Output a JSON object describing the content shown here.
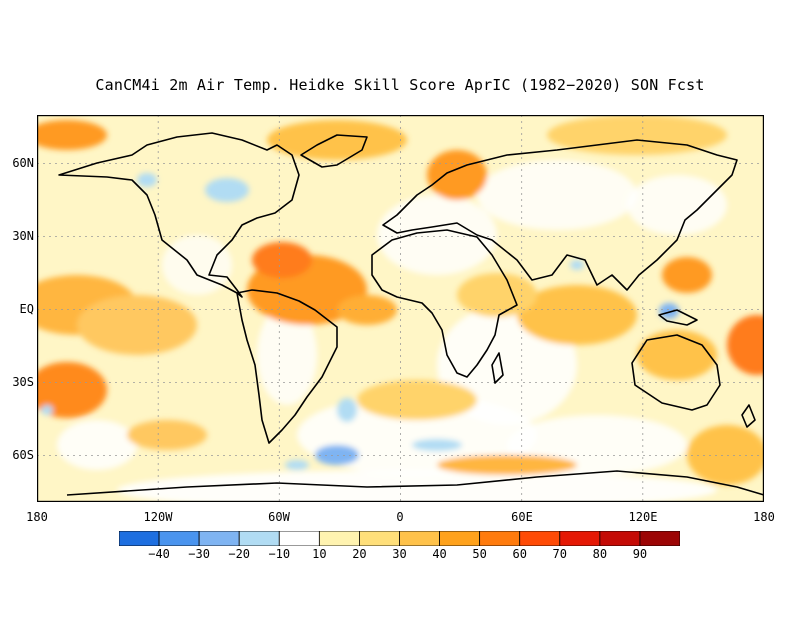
{
  "title": "CanCM4i 2m Air Temp. Heidke Skill Score AprIC (1982−2020) SON Fcst",
  "lat_labels": [
    "60N",
    "30N",
    "EQ",
    "30S",
    "60S"
  ],
  "lat_values": [
    60,
    30,
    0,
    -30,
    -60
  ],
  "lon_labels": [
    "180",
    "120W",
    "60W",
    "0",
    "60E",
    "120E",
    "180"
  ],
  "lon_values": [
    -180,
    -120,
    -60,
    0,
    60,
    120,
    180
  ],
  "colorbar": {
    "labels": [
      "−40",
      "−30",
      "−20",
      "−10",
      "10",
      "20",
      "30",
      "40",
      "50",
      "60",
      "70",
      "80",
      "90"
    ],
    "colors": [
      "#1e6fe0",
      "#4a94ee",
      "#7fb4f2",
      "#b1dcf3",
      "#ffffff",
      "#fff3b0",
      "#ffdf7a",
      "#ffc24a",
      "#ffa21c",
      "#ff7b0d",
      "#ff4b06",
      "#e51905",
      "#c40b06",
      "#9c0505"
    ]
  },
  "colors": {
    "land_outline": "#000000",
    "grid": "#9a9a9a",
    "background": "#ffffff"
  }
}
